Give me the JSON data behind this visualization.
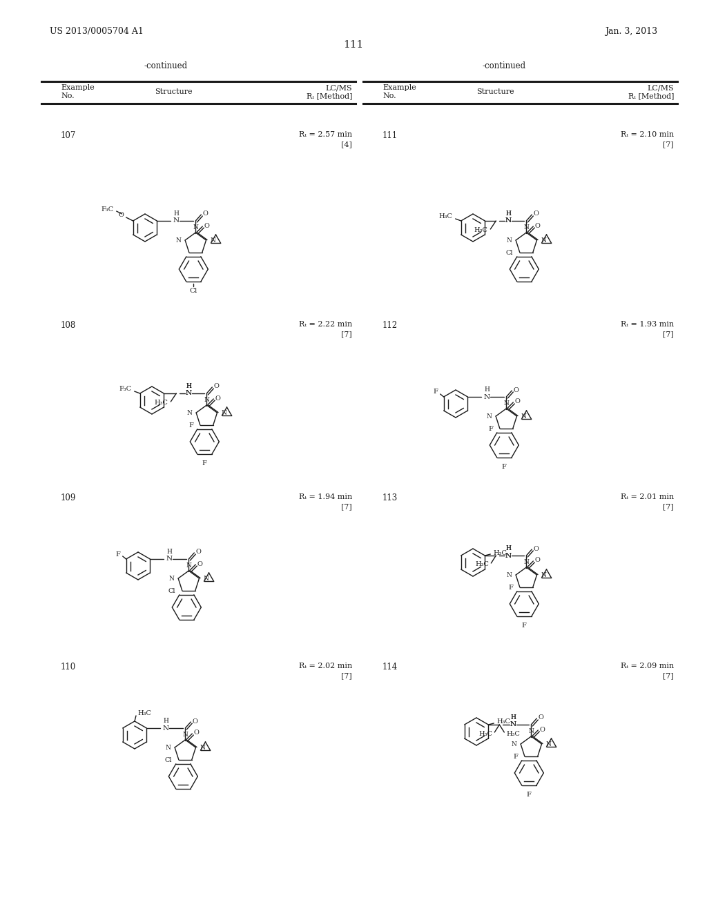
{
  "page_number": "111",
  "patent_number": "US 2013/0005704 A1",
  "patent_date": "Jan. 3, 2013",
  "background_color": "#ffffff",
  "text_color": "#1a1a1a",
  "continued_label": "-continued",
  "left_rows": [
    {
      "example": "107",
      "rt_line1": "Rₜ = 2.57 min",
      "rt_line2": "[4]"
    },
    {
      "example": "108",
      "rt_line1": "Rₜ = 2.22 min",
      "rt_line2": "[7]"
    },
    {
      "example": "109",
      "rt_line1": "Rₜ = 1.94 min",
      "rt_line2": "[7]"
    },
    {
      "example": "110",
      "rt_line1": "Rₜ = 2.02 min",
      "rt_line2": "[7]"
    }
  ],
  "right_rows": [
    {
      "example": "111",
      "rt_line1": "Rₜ = 2.10 min",
      "rt_line2": "[7]"
    },
    {
      "example": "112",
      "rt_line1": "Rₜ = 1.93 min",
      "rt_line2": "[7]"
    },
    {
      "example": "113",
      "rt_line1": "Rₜ = 2.01 min",
      "rt_line2": "[7]"
    },
    {
      "example": "114",
      "rt_line1": "Rₜ = 2.09 min",
      "rt_line2": "[7]"
    }
  ]
}
